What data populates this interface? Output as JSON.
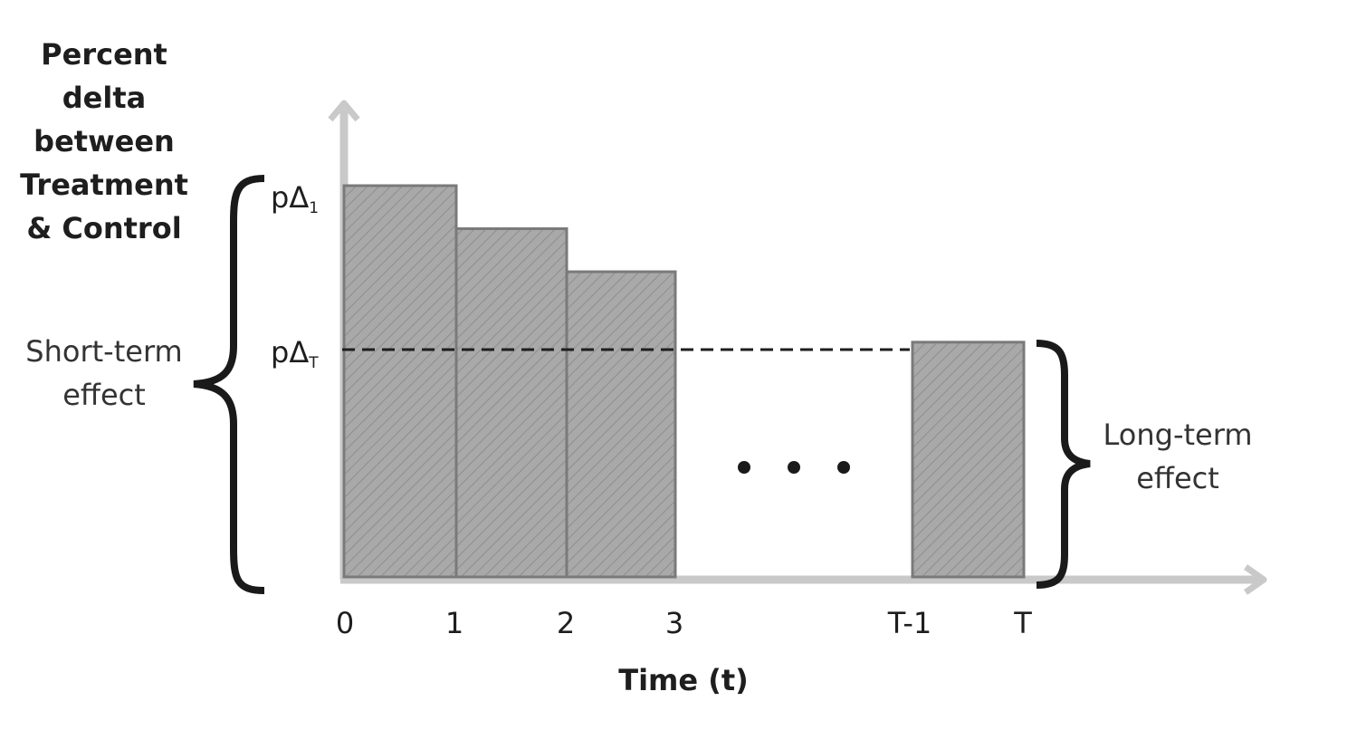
{
  "y_axis_title_lines": [
    "Percent",
    "delta",
    "between",
    "Treatment",
    "& Control"
  ],
  "x_axis_title": "Time (t)",
  "x_ticks": [
    "0",
    "1",
    "2",
    "3",
    "T-1",
    "T"
  ],
  "level_labels": {
    "first": {
      "base": "pΔ",
      "sub": "1"
    },
    "last": {
      "base": "pΔ",
      "sub": "T"
    }
  },
  "short_term_label_lines": [
    "Short-term",
    "effect"
  ],
  "long_term_label_lines": [
    "Long-term",
    "effect"
  ],
  "colors": {
    "bar_fill": "#a9a9a9",
    "bar_edge": "#7a7a7a",
    "axis": "#c9c9c9",
    "brace": "#1a1a1a"
  },
  "chart_data": {
    "type": "bar",
    "categories": [
      "0-1",
      "1-2",
      "2-3",
      "T-1-T"
    ],
    "values": [
      1.0,
      0.89,
      0.78,
      0.6
    ],
    "gap_between": [
      "3",
      "T-1"
    ],
    "reference_line": "pΔT",
    "ylim": [
      0,
      1.2
    ]
  }
}
